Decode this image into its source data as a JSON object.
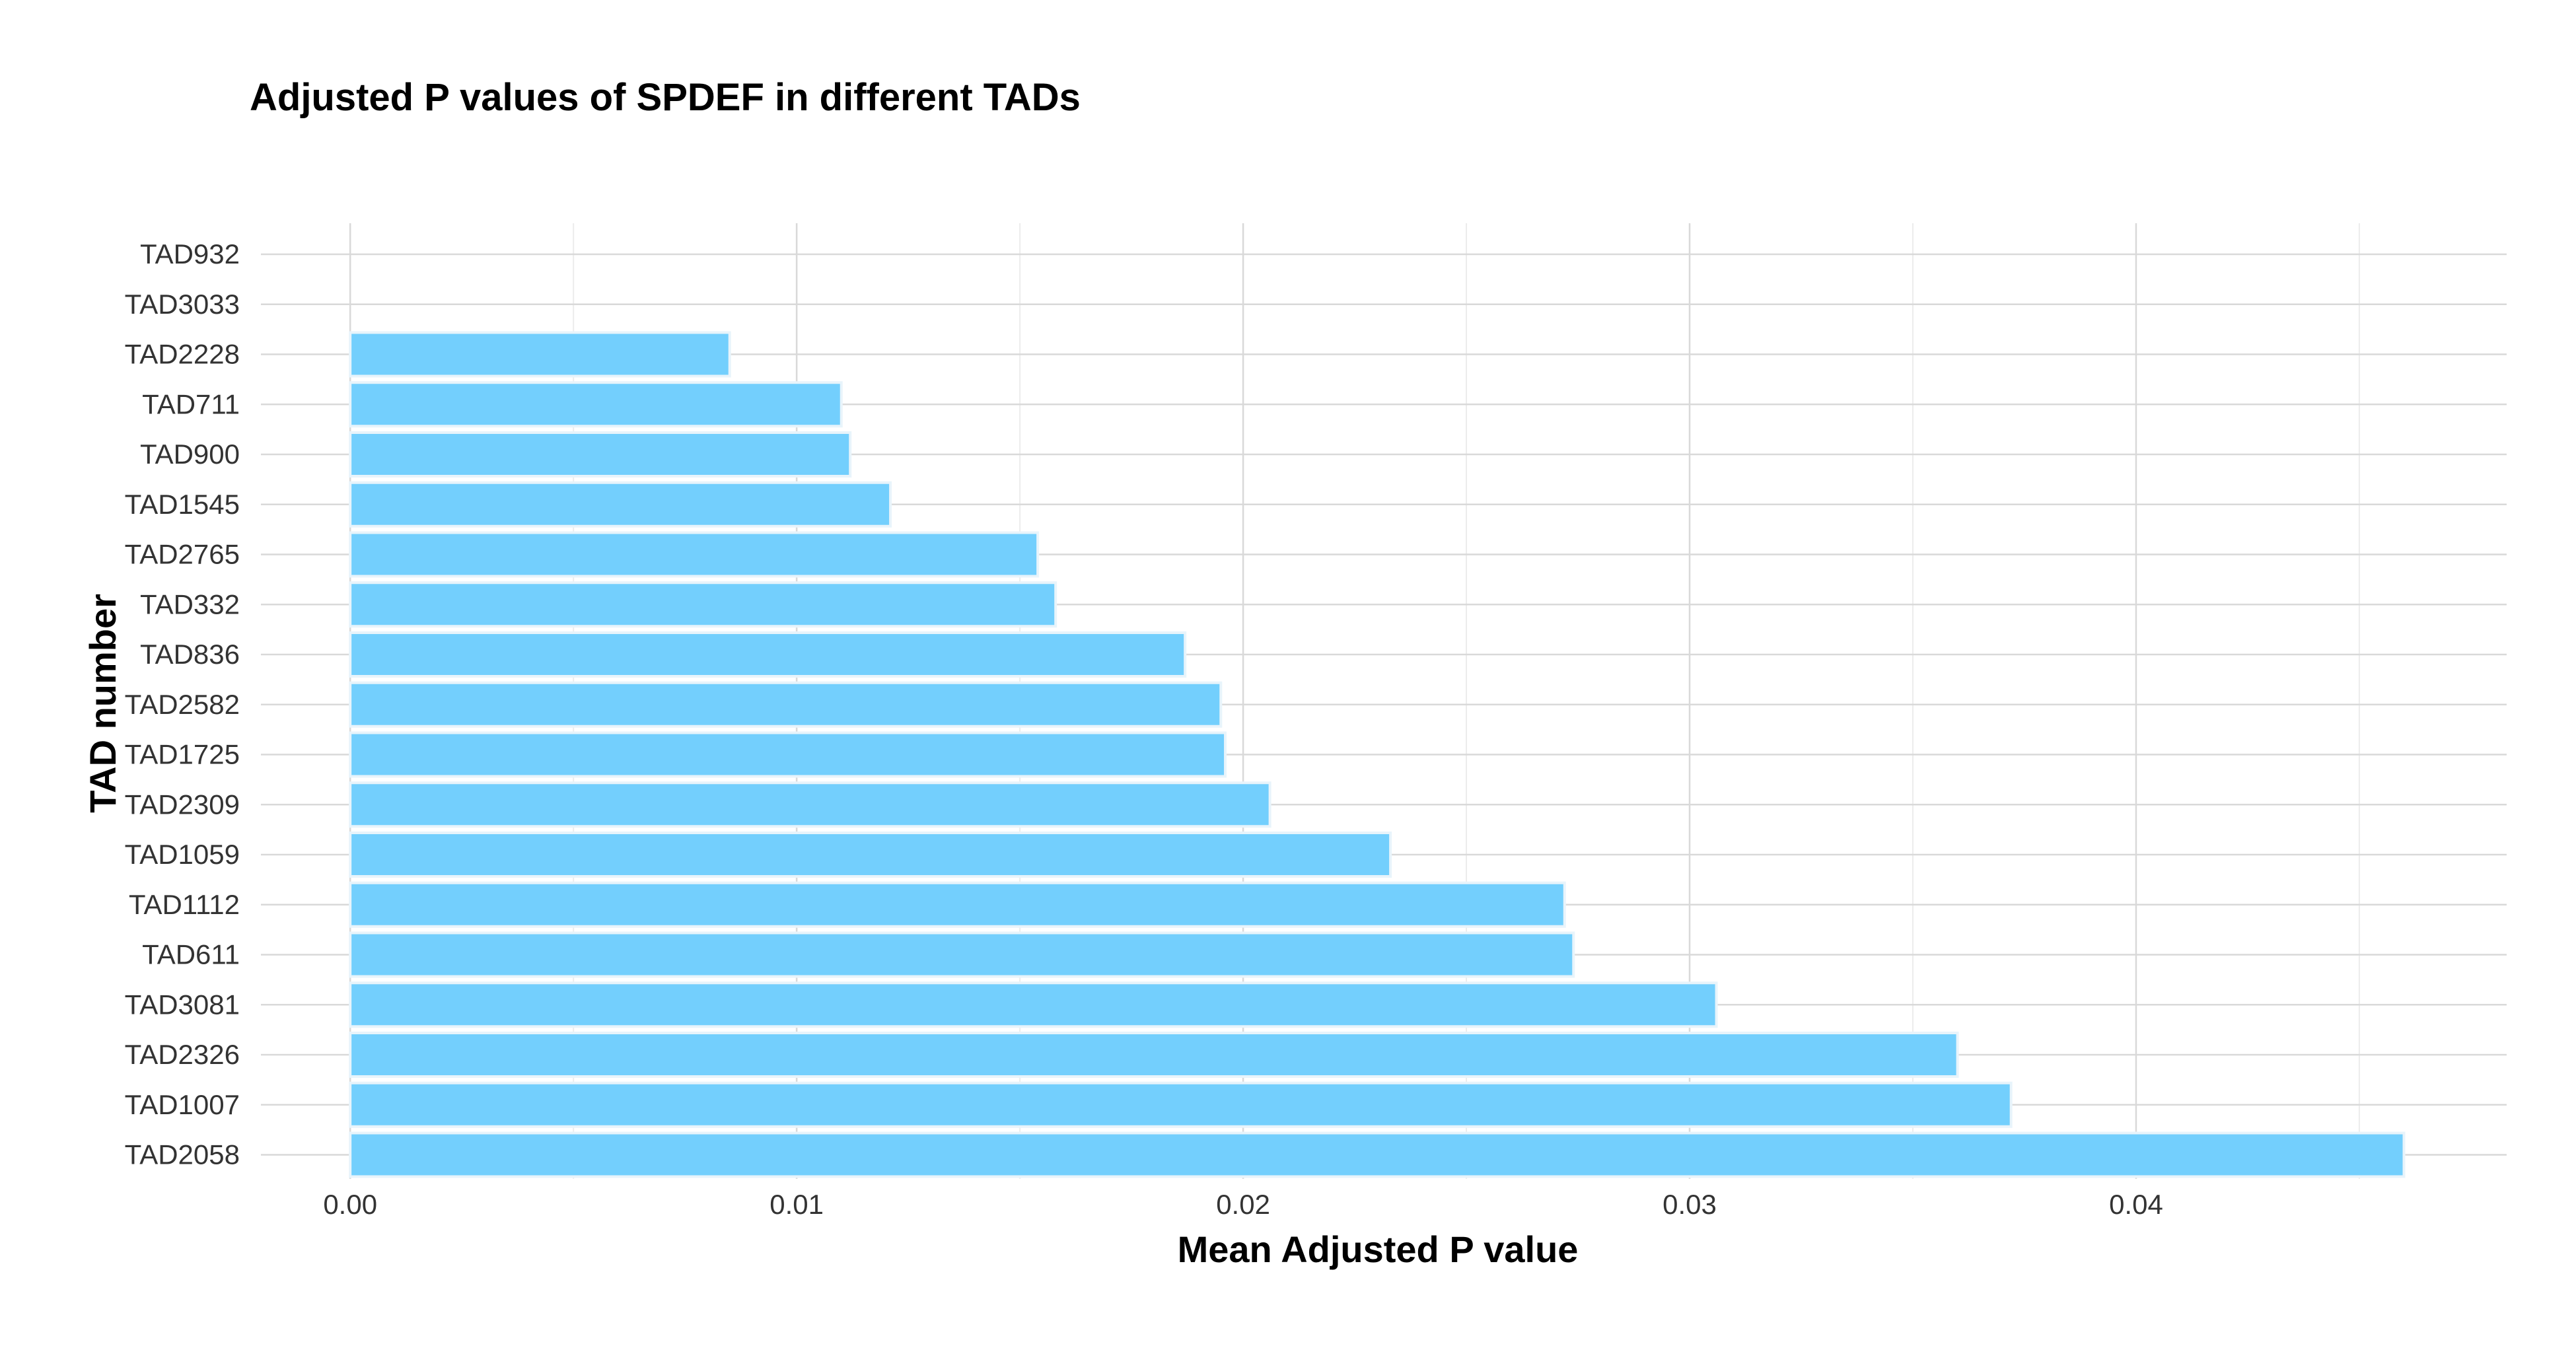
{
  "chart_data": {
    "type": "bar",
    "orientation": "horizontal",
    "title": "Adjusted P values of SPDEF in different TADs",
    "xlabel": "Mean Adjusted P value",
    "ylabel": "TAD number",
    "categories": [
      "TAD932",
      "TAD3033",
      "TAD2228",
      "TAD711",
      "TAD900",
      "TAD1545",
      "TAD2765",
      "TAD332",
      "TAD836",
      "TAD2582",
      "TAD1725",
      "TAD2309",
      "TAD1059",
      "TAD1112",
      "TAD611",
      "TAD3081",
      "TAD2326",
      "TAD1007",
      "TAD2058"
    ],
    "values": [
      0,
      0,
      0.0085,
      0.011,
      0.0112,
      0.0121,
      0.0154,
      0.0158,
      0.0187,
      0.0195,
      0.0196,
      0.0206,
      0.0233,
      0.0272,
      0.0274,
      0.0306,
      0.036,
      0.0372,
      0.046
    ],
    "xlim": [
      -0.002,
      0.0483
    ],
    "xticks": [
      0,
      0.01,
      0.02,
      0.03,
      0.04
    ],
    "xtick_labels": [
      "0.00",
      "0.01",
      "0.02",
      "0.03",
      "0.04"
    ],
    "grid": true,
    "legend": "none",
    "bar_color": "#73cffd",
    "bar_border_color": "#e8f4fb"
  }
}
